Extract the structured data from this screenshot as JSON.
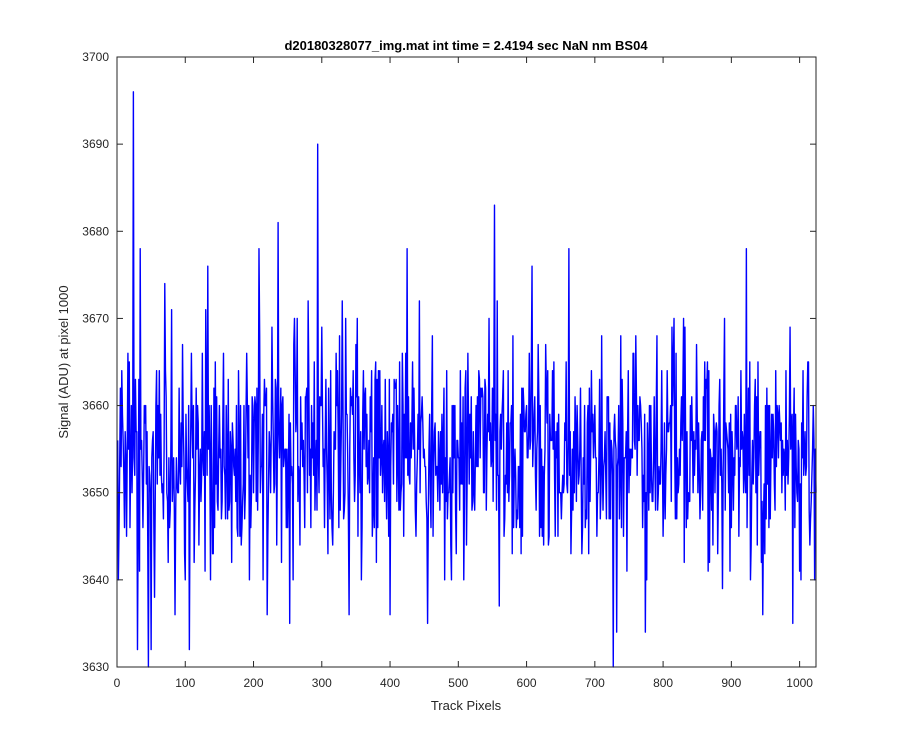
{
  "chart_data": {
    "type": "line",
    "title": "d20180328077_img.mat int time = 2.4194 sec  NaN nm BS04",
    "xlabel": "Track Pixels",
    "ylabel": "Signal (ADU) at pixel 1000",
    "xlim": [
      0,
      1024
    ],
    "ylim": [
      3630,
      3700
    ],
    "xticks": [
      0,
      100,
      200,
      300,
      400,
      500,
      600,
      700,
      800,
      900,
      1000
    ],
    "yticks": [
      3630,
      3640,
      3650,
      3660,
      3670,
      3680,
      3690,
      3700
    ],
    "xtick_labels": [
      "0",
      "100",
      "200",
      "300",
      "400",
      "500",
      "600",
      "700",
      "800",
      "900",
      "1000"
    ],
    "ytick_labels": [
      "3630",
      "3640",
      "3650",
      "3660",
      "3670",
      "3680",
      "3690",
      "3700"
    ],
    "grid": false,
    "legend": "none",
    "series": [
      {
        "color": "#0000ff",
        "n_points": 1024,
        "mean": 3655,
        "points": [
          [
            1,
            3656
          ],
          [
            5,
            3662
          ],
          [
            10,
            3652
          ],
          [
            14,
            3645
          ],
          [
            18,
            3665
          ],
          [
            22,
            3650
          ],
          [
            24,
            3696
          ],
          [
            26,
            3652
          ],
          [
            30,
            3632
          ],
          [
            34,
            3678
          ],
          [
            38,
            3646
          ],
          [
            42,
            3660
          ],
          [
            46,
            3630
          ],
          [
            50,
            3632
          ],
          [
            55,
            3638
          ],
          [
            60,
            3660
          ],
          [
            65,
            3652
          ],
          [
            70,
            3674
          ],
          [
            75,
            3642
          ],
          [
            80,
            3671
          ],
          [
            85,
            3636
          ],
          [
            90,
            3650
          ],
          [
            96,
            3667
          ],
          [
            100,
            3640
          ],
          [
            106,
            3632
          ],
          [
            110,
            3658
          ],
          [
            115,
            3652
          ],
          [
            120,
            3644
          ],
          [
            125,
            3666
          ],
          [
            130,
            3671
          ],
          [
            133,
            3676
          ],
          [
            137,
            3640
          ],
          [
            142,
            3662
          ],
          [
            148,
            3648
          ],
          [
            155,
            3658
          ],
          [
            160,
            3660
          ],
          [
            168,
            3642
          ],
          [
            175,
            3660
          ],
          [
            182,
            3644
          ],
          [
            190,
            3666
          ],
          [
            197,
            3650
          ],
          [
            203,
            3660
          ],
          [
            208,
            3678
          ],
          [
            214,
            3640
          ],
          [
            220,
            3636
          ],
          [
            226,
            3657
          ],
          [
            230,
            3650
          ],
          [
            236,
            3681
          ],
          [
            242,
            3660
          ],
          [
            248,
            3646
          ],
          [
            253,
            3635
          ],
          [
            258,
            3640
          ],
          [
            264,
            3670
          ],
          [
            268,
            3644
          ],
          [
            274,
            3652
          ],
          [
            280,
            3672
          ],
          [
            286,
            3654
          ],
          [
            290,
            3648
          ],
          [
            294,
            3690
          ],
          [
            299,
            3660
          ],
          [
            304,
            3646
          ],
          [
            310,
            3662
          ],
          [
            316,
            3644
          ],
          [
            322,
            3660
          ],
          [
            328,
            3654
          ],
          [
            334,
            3650
          ],
          [
            340,
            3636
          ],
          [
            346,
            3664
          ],
          [
            352,
            3670
          ],
          [
            358,
            3640
          ],
          [
            364,
            3662
          ],
          [
            370,
            3650
          ],
          [
            376,
            3654
          ],
          [
            382,
            3646
          ],
          [
            388,
            3660
          ],
          [
            394,
            3652
          ],
          [
            400,
            3636
          ],
          [
            407,
            3662
          ],
          [
            413,
            3648
          ],
          [
            419,
            3660
          ],
          [
            425,
            3678
          ],
          [
            431,
            3654
          ],
          [
            437,
            3648
          ],
          [
            443,
            3672
          ],
          [
            449,
            3654
          ],
          [
            455,
            3635
          ],
          [
            461,
            3660
          ],
          [
            467,
            3652
          ],
          [
            473,
            3648
          ],
          [
            479,
            3662
          ],
          [
            485,
            3650
          ],
          [
            491,
            3660
          ],
          [
            495,
            3660
          ],
          [
            500,
            3654
          ],
          [
            508,
            3640
          ],
          [
            514,
            3666
          ],
          [
            520,
            3648
          ],
          [
            526,
            3660
          ],
          [
            532,
            3654
          ],
          [
            538,
            3650
          ],
          [
            545,
            3670
          ],
          [
            553,
            3683
          ],
          [
            560,
            3637
          ],
          [
            566,
            3664
          ],
          [
            572,
            3650
          ],
          [
            578,
            3660
          ],
          [
            584,
            3652
          ],
          [
            590,
            3646
          ],
          [
            596,
            3660
          ],
          [
            602,
            3654
          ],
          [
            608,
            3676
          ],
          [
            614,
            3648
          ],
          [
            620,
            3660
          ],
          [
            626,
            3652
          ],
          [
            632,
            3644
          ],
          [
            638,
            3664
          ],
          [
            644,
            3654
          ],
          [
            650,
            3650
          ],
          [
            656,
            3658
          ],
          [
            662,
            3678
          ],
          [
            668,
            3648
          ],
          [
            674,
            3660
          ],
          [
            680,
            3652
          ],
          [
            686,
            3646
          ],
          [
            692,
            3662
          ],
          [
            698,
            3654
          ],
          [
            704,
            3650
          ],
          [
            710,
            3668
          ],
          [
            716,
            3652
          ],
          [
            722,
            3658
          ],
          [
            727,
            3630
          ],
          [
            732,
            3634
          ],
          [
            738,
            3668
          ],
          [
            744,
            3654
          ],
          [
            750,
            3650
          ],
          [
            756,
            3666
          ],
          [
            762,
            3652
          ],
          [
            768,
            3658
          ],
          [
            774,
            3634
          ],
          [
            780,
            3660
          ],
          [
            786,
            3654
          ],
          [
            792,
            3648
          ],
          [
            798,
            3664
          ],
          [
            804,
            3652
          ],
          [
            810,
            3658
          ],
          [
            816,
            3670
          ],
          [
            822,
            3650
          ],
          [
            828,
            3656
          ],
          [
            834,
            3646
          ],
          [
            840,
            3660
          ],
          [
            846,
            3652
          ],
          [
            852,
            3658
          ],
          [
            858,
            3648
          ],
          [
            864,
            3662
          ],
          [
            870,
            3654
          ],
          [
            876,
            3650
          ],
          [
            882,
            3660
          ],
          [
            888,
            3652
          ],
          [
            894,
            3656
          ],
          [
            900,
            3646
          ],
          [
            906,
            3660
          ],
          [
            912,
            3654
          ],
          [
            918,
            3650
          ],
          [
            922,
            3678
          ],
          [
            928,
            3640
          ],
          [
            934,
            3660
          ],
          [
            940,
            3652
          ],
          [
            946,
            3636
          ],
          [
            952,
            3662
          ],
          [
            958,
            3654
          ],
          [
            964,
            3648
          ],
          [
            970,
            3660
          ],
          [
            976,
            3652
          ],
          [
            982,
            3656
          ],
          [
            986,
            3669
          ],
          [
            990,
            3635
          ],
          [
            996,
            3650
          ],
          [
            1002,
            3640
          ],
          [
            1008,
            3657
          ],
          [
            1012,
            3665
          ],
          [
            1016,
            3647
          ],
          [
            1020,
            3660
          ],
          [
            1024,
            3650
          ]
        ]
      }
    ]
  }
}
